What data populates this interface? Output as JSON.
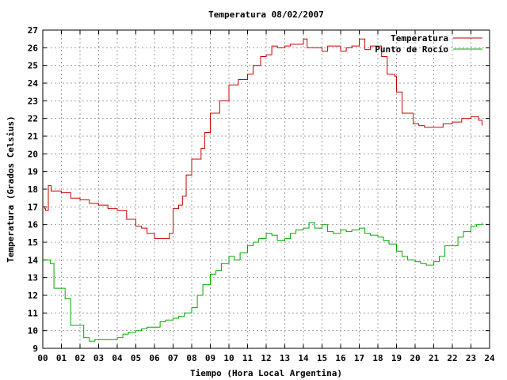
{
  "chart_data": {
    "type": "line",
    "title": "Temperatura 08/02/2007",
    "xlabel": "Tiempo (Hora Local Argentina)",
    "ylabel": "Temperatura (Grados Celsius)",
    "xlim": [
      0,
      24
    ],
    "ylim": [
      9,
      27
    ],
    "x_ticks": [
      "00",
      "01",
      "02",
      "03",
      "04",
      "05",
      "06",
      "07",
      "08",
      "09",
      "10",
      "11",
      "12",
      "13",
      "14",
      "15",
      "16",
      "17",
      "18",
      "19",
      "20",
      "21",
      "22",
      "23",
      "24"
    ],
    "y_ticks": [
      9,
      10,
      11,
      12,
      13,
      14,
      15,
      16,
      17,
      18,
      19,
      20,
      21,
      22,
      23,
      24,
      25,
      26,
      27
    ],
    "grid": true,
    "legend_position": "top-right",
    "series": [
      {
        "name": "Temperatura",
        "color": "#cc0000",
        "x": [
          0,
          0.1,
          0.15,
          0.3,
          0.45,
          0.5,
          1.0,
          1.5,
          2.0,
          2.5,
          3.0,
          3.5,
          4.0,
          4.5,
          5.0,
          5.3,
          5.6,
          6.0,
          6.2,
          6.5,
          6.8,
          7.0,
          7.3,
          7.5,
          7.7,
          8.0,
          8.3,
          8.5,
          8.7,
          9.0,
          9.2,
          9.5,
          10.0,
          10.2,
          10.5,
          11.0,
          11.3,
          11.7,
          12.0,
          12.3,
          12.6,
          13.0,
          13.3,
          13.6,
          14.0,
          14.2,
          14.6,
          15.0,
          15.3,
          15.6,
          16.0,
          16.3,
          16.6,
          17.0,
          17.3,
          17.6,
          17.9,
          18.2,
          18.5,
          18.9,
          19.0,
          19.3,
          19.6,
          19.9,
          20.2,
          20.5,
          20.8,
          21.0,
          21.5,
          22.0,
          22.5,
          23.0,
          23.2,
          23.4,
          23.6
        ],
        "y": [
          17.0,
          16.9,
          16.8,
          18.2,
          17.9,
          17.9,
          17.8,
          17.5,
          17.4,
          17.2,
          17.1,
          16.9,
          16.8,
          16.3,
          15.9,
          15.8,
          15.5,
          15.2,
          15.2,
          15.2,
          15.5,
          16.9,
          17.1,
          17.6,
          18.8,
          19.7,
          19.7,
          20.3,
          21.2,
          22.3,
          22.3,
          23.0,
          23.9,
          23.9,
          24.2,
          24.5,
          25.0,
          25.5,
          25.6,
          26.1,
          26.0,
          26.1,
          26.2,
          26.2,
          26.5,
          26.0,
          26.0,
          25.8,
          26.1,
          26.1,
          25.8,
          26.0,
          26.1,
          26.5,
          25.9,
          26.1,
          26.1,
          25.5,
          24.5,
          24.4,
          23.5,
          22.3,
          22.3,
          21.7,
          21.6,
          21.5,
          21.5,
          21.5,
          21.7,
          21.8,
          22.0,
          22.1,
          22.1,
          21.9,
          21.6
        ]
      },
      {
        "name": "Punto de Rocío",
        "color": "#00aa00",
        "x": [
          0,
          0.2,
          0.4,
          0.6,
          1.0,
          1.2,
          1.5,
          1.7,
          2.0,
          2.2,
          2.5,
          2.8,
          3.0,
          3.5,
          4.0,
          4.3,
          4.6,
          5.0,
          5.3,
          5.6,
          6.0,
          6.3,
          6.6,
          7.0,
          7.3,
          7.6,
          8.0,
          8.3,
          8.6,
          9.0,
          9.3,
          9.6,
          10.0,
          10.3,
          10.6,
          11.0,
          11.3,
          11.6,
          12.0,
          12.3,
          12.6,
          13.0,
          13.3,
          13.6,
          14.0,
          14.3,
          14.6,
          15.0,
          15.3,
          15.6,
          16.0,
          16.3,
          16.6,
          17.0,
          17.3,
          17.6,
          18.0,
          18.3,
          18.6,
          19.0,
          19.3,
          19.6,
          20.0,
          20.3,
          20.6,
          21.0,
          21.3,
          21.6,
          22.0,
          22.3,
          22.6,
          23.0,
          23.3,
          23.6
        ],
        "y": [
          14.0,
          14.0,
          13.8,
          12.4,
          12.4,
          11.8,
          10.3,
          10.3,
          10.3,
          9.6,
          9.4,
          9.5,
          9.5,
          9.5,
          9.6,
          9.8,
          9.9,
          10.0,
          10.1,
          10.2,
          10.2,
          10.5,
          10.6,
          10.7,
          10.8,
          11.0,
          11.3,
          12.0,
          12.6,
          13.2,
          13.4,
          13.8,
          14.2,
          14.0,
          14.4,
          14.8,
          15.0,
          15.2,
          15.5,
          15.4,
          15.1,
          15.2,
          15.5,
          15.7,
          15.8,
          16.1,
          15.8,
          16.0,
          15.6,
          15.5,
          15.7,
          15.6,
          15.7,
          15.8,
          15.5,
          15.4,
          15.3,
          15.1,
          14.9,
          14.5,
          14.2,
          14.0,
          13.9,
          13.8,
          13.7,
          13.9,
          14.2,
          14.8,
          14.8,
          15.3,
          15.6,
          15.9,
          16.0,
          16.1
        ]
      }
    ]
  }
}
